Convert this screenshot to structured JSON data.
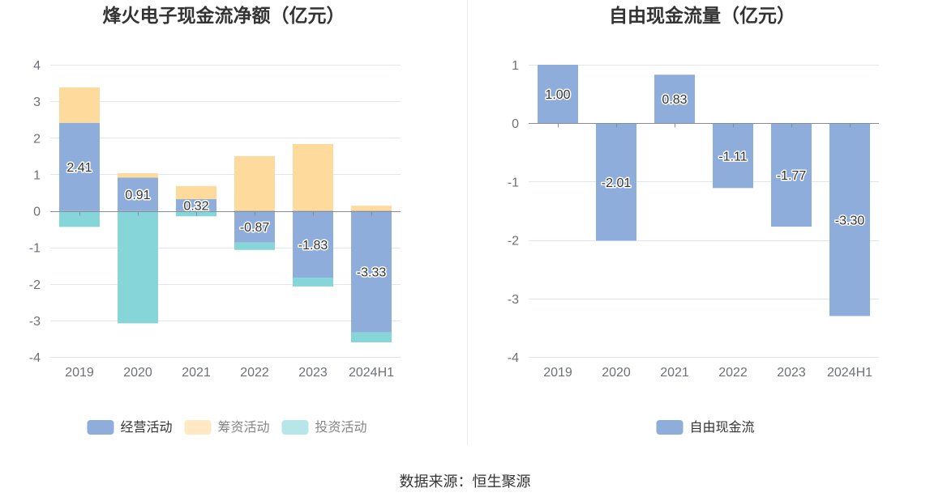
{
  "source": "数据来源：恒生聚源",
  "chart_data": [
    {
      "type": "bar",
      "stacked": true,
      "title": "烽火电子现金流净额（亿元）",
      "xlabel": "",
      "ylabel": "",
      "categories": [
        "2019",
        "2020",
        "2021",
        "2022",
        "2023",
        "2024H1"
      ],
      "ylim": [
        -4,
        4
      ],
      "yticks": [
        4,
        3,
        2,
        1,
        0,
        -1,
        -2,
        -3,
        -4
      ],
      "grid": true,
      "legend_position": "bottom",
      "series": [
        {
          "name": "经营活动",
          "color": "#8eaddb",
          "data_labels": true,
          "values": [
            2.41,
            0.91,
            0.32,
            -0.87,
            -1.83,
            -3.33
          ]
        },
        {
          "name": "筹资活动",
          "color": "#fedb9c",
          "data_labels": false,
          "values": [
            0.97,
            0.12,
            0.36,
            1.5,
            1.83,
            0.14
          ]
        },
        {
          "name": "投资活动",
          "color": "#86d5d8",
          "data_labels": false,
          "values": [
            -0.44,
            -3.08,
            -0.15,
            -0.2,
            -0.24,
            -0.27
          ]
        }
      ]
    },
    {
      "type": "bar",
      "stacked": false,
      "title": "自由现金流量（亿元）",
      "xlabel": "",
      "ylabel": "",
      "categories": [
        "2019",
        "2020",
        "2021",
        "2022",
        "2023",
        "2024H1"
      ],
      "ylim": [
        -4,
        1
      ],
      "yticks": [
        1,
        0,
        -1,
        -2,
        -3,
        -4
      ],
      "grid": true,
      "legend_position": "bottom",
      "series": [
        {
          "name": "自由现金流",
          "color": "#8eaddb",
          "data_labels": true,
          "values": [
            1.0,
            -2.01,
            0.83,
            -1.11,
            -1.77,
            -3.3
          ]
        }
      ]
    }
  ]
}
